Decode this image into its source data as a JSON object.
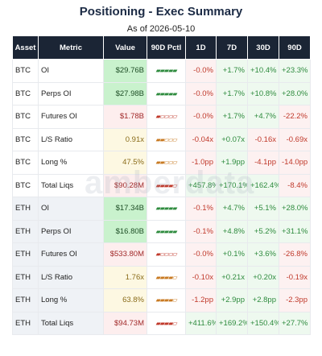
{
  "header": {
    "title": "Positioning - Exec Summary",
    "subtitle": "As of 2026-05-10"
  },
  "watermark": "amberdata",
  "table": {
    "columns": [
      "Asset",
      "Metric",
      "Value",
      "90D Pctl",
      "1D",
      "7D",
      "30D",
      "90D"
    ],
    "rows": [
      [
        "BTC",
        "OI",
        "$29.76B",
        "▰▰▰▰▰",
        "-0.0%",
        "+1.7%",
        "+10.4%",
        "+23.3%"
      ],
      [
        "BTC",
        "Perps OI",
        "$27.98B",
        "▰▰▰▰▰",
        "-0.0%",
        "+1.7%",
        "+10.8%",
        "+28.0%"
      ],
      [
        "BTC",
        "Futures OI",
        "$1.78B",
        "▰▱▱▱▱",
        "-0.0%",
        "+1.7%",
        "+4.7%",
        "-22.2%"
      ],
      [
        "BTC",
        "L/S Ratio",
        "0.91x",
        "▰▰▱▱▱",
        "-0.04x",
        "+0.07x",
        "-0.16x",
        "-0.69x"
      ],
      [
        "BTC",
        "Long %",
        "47.5%",
        "▰▰▱▱▱",
        "-1.0pp",
        "+1.9pp",
        "-4.1pp",
        "-14.0pp"
      ],
      [
        "BTC",
        "Total Liqs",
        "$90.28M",
        "▰▰▰▰▱",
        "+457.8%",
        "+170.1%",
        "+162.4%",
        "-8.4%"
      ],
      [
        "ETH",
        "OI",
        "$17.34B",
        "▰▰▰▰▰",
        "-0.1%",
        "+4.7%",
        "+5.1%",
        "+28.0%"
      ],
      [
        "ETH",
        "Perps OI",
        "$16.80B",
        "▰▰▰▰▰",
        "-0.1%",
        "+4.8%",
        "+5.2%",
        "+31.1%"
      ],
      [
        "ETH",
        "Futures OI",
        "$533.80M",
        "▰▱▱▱▱",
        "-0.0%",
        "+0.1%",
        "+3.6%",
        "-26.8%"
      ],
      [
        "ETH",
        "L/S Ratio",
        "1.76x",
        "▰▰▰▰▱",
        "-0.10x",
        "+0.21x",
        "+0.20x",
        "-0.19x"
      ],
      [
        "ETH",
        "Long %",
        "63.8%",
        "▰▰▰▰▱",
        "-1.2pp",
        "+2.9pp",
        "+2.8pp",
        "-2.3pp"
      ],
      [
        "ETH",
        "Total Liqs",
        "$94.73M",
        "▰▰▰▰▱",
        "+411.6%",
        "+169.2%",
        "+150.4%",
        "+27.7%"
      ]
    ],
    "value_tones": [
      "green",
      "green",
      "red",
      "yellow",
      "yellow",
      "red",
      "green",
      "green",
      "red",
      "yellow",
      "yellow",
      "red"
    ],
    "pctl_tones": [
      "green",
      "green",
      "red",
      "orange",
      "orange",
      "red",
      "green",
      "green",
      "red",
      "orange",
      "orange",
      "red"
    ]
  }
}
